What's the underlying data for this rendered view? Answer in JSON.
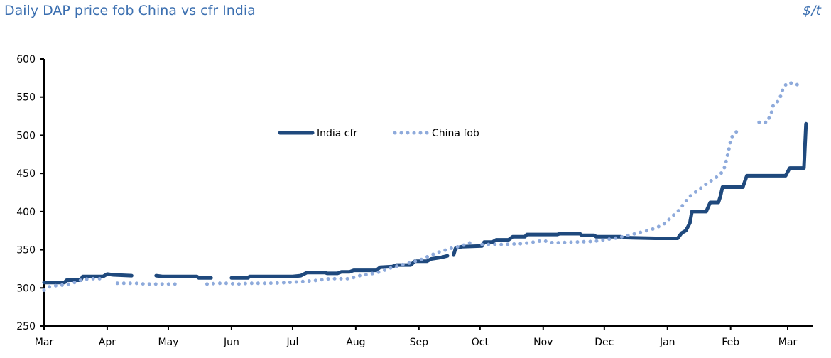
{
  "chart_data": {
    "type": "line",
    "title": "Daily DAP price fob China vs cfr India",
    "unit": "$/t",
    "xlabel": "",
    "ylabel": "$/t",
    "ylim": [
      250,
      600
    ],
    "yticks": [
      250,
      300,
      350,
      400,
      450,
      500,
      550,
      600
    ],
    "x_unit": "days since 1 March",
    "xlim": [
      0,
      375
    ],
    "xticks": [
      {
        "label": "Mar",
        "day": 0
      },
      {
        "label": "Apr",
        "day": 31
      },
      {
        "label": "May",
        "day": 61
      },
      {
        "label": "Jun",
        "day": 92
      },
      {
        "label": "Jul",
        "day": 122
      },
      {
        "label": "Aug",
        "day": 153
      },
      {
        "label": "Sep",
        "day": 184
      },
      {
        "label": "Oct",
        "day": 214
      },
      {
        "label": "Nov",
        "day": 245
      },
      {
        "label": "Dec",
        "day": 275
      },
      {
        "label": "Jan",
        "day": 306
      },
      {
        "label": "Feb",
        "day": 337
      },
      {
        "label": "Mar",
        "day": 365
      }
    ],
    "grid": false,
    "legend_position": "center",
    "series": [
      {
        "name": "India cfr",
        "style": "solid",
        "color": "#1f497d",
        "points": [
          [
            0,
            307
          ],
          [
            10,
            307
          ],
          [
            11,
            310
          ],
          [
            18,
            310
          ],
          [
            19,
            315
          ],
          [
            29,
            315
          ],
          [
            31,
            318
          ],
          [
            34,
            317
          ],
          [
            43,
            316
          ],
          null,
          [
            55,
            316
          ],
          [
            58,
            315
          ],
          [
            75,
            315
          ],
          [
            76,
            313
          ],
          [
            82,
            313
          ],
          null,
          [
            92,
            313
          ],
          [
            100,
            313
          ],
          [
            101,
            315
          ],
          [
            120,
            315
          ],
          [
            122,
            315
          ],
          [
            126,
            316
          ],
          [
            129,
            320
          ],
          [
            138,
            320
          ],
          [
            139,
            319
          ],
          [
            144,
            319
          ],
          [
            146,
            321
          ],
          [
            150,
            321
          ],
          [
            152,
            323
          ],
          [
            163,
            323
          ],
          [
            165,
            327
          ],
          [
            171,
            328
          ],
          [
            173,
            330
          ],
          [
            180,
            330
          ],
          [
            182,
            335
          ],
          [
            188,
            335
          ],
          [
            190,
            338
          ],
          [
            195,
            340
          ],
          [
            198,
            342
          ],
          null,
          [
            201,
            343
          ],
          [
            202,
            352
          ],
          [
            205,
            354
          ],
          [
            215,
            355
          ],
          [
            216,
            360
          ],
          [
            220,
            360
          ],
          [
            222,
            363
          ],
          [
            228,
            363
          ],
          [
            230,
            367
          ],
          [
            236,
            367
          ],
          [
            237,
            370
          ],
          [
            252,
            370
          ],
          [
            253,
            371
          ],
          [
            263,
            371
          ],
          [
            264,
            369
          ],
          [
            270,
            369
          ],
          [
            271,
            367
          ],
          [
            283,
            367
          ],
          [
            284,
            366
          ],
          [
            300,
            365
          ],
          [
            311,
            365
          ],
          [
            313,
            372
          ],
          [
            315,
            375
          ],
          [
            317,
            385
          ],
          [
            318,
            400
          ],
          [
            325,
            400
          ],
          [
            326,
            406
          ],
          [
            327,
            412
          ],
          [
            331,
            412
          ],
          [
            332,
            420
          ],
          [
            333,
            432
          ],
          [
            343,
            432
          ],
          [
            344,
            440
          ],
          [
            345,
            447
          ],
          [
            364,
            447
          ],
          [
            365,
            452
          ],
          [
            366,
            457
          ],
          [
            373,
            457
          ],
          [
            374,
            515
          ]
        ]
      },
      {
        "name": "China fob",
        "style": "dotted",
        "color": "#8eaadb",
        "points": [
          [
            0,
            297
          ],
          [
            3,
            302
          ],
          [
            6,
            303
          ],
          [
            10,
            304
          ],
          [
            14,
            306
          ],
          [
            18,
            310
          ],
          [
            22,
            312
          ],
          [
            26,
            312
          ],
          [
            30,
            312
          ],
          null,
          [
            36,
            306
          ],
          [
            40,
            306
          ],
          [
            45,
            306
          ],
          [
            50,
            305
          ],
          [
            55,
            305
          ],
          [
            60,
            305
          ],
          [
            65,
            305
          ],
          null,
          [
            80,
            305
          ],
          [
            85,
            306
          ],
          [
            90,
            306
          ],
          [
            95,
            305
          ],
          [
            100,
            306
          ],
          [
            110,
            306
          ],
          [
            120,
            307
          ],
          [
            125,
            308
          ],
          [
            130,
            309
          ],
          [
            135,
            310
          ],
          [
            140,
            312
          ],
          [
            150,
            312
          ],
          [
            155,
            316
          ],
          [
            160,
            318
          ],
          [
            165,
            321
          ],
          [
            170,
            326
          ],
          [
            175,
            330
          ],
          [
            180,
            333
          ],
          [
            185,
            337
          ],
          [
            190,
            343
          ],
          [
            195,
            348
          ],
          [
            200,
            352
          ],
          [
            205,
            355
          ],
          [
            210,
            360
          ],
          null,
          [
            215,
            357
          ],
          [
            225,
            357
          ],
          [
            235,
            358
          ],
          [
            245,
            362
          ],
          [
            250,
            359
          ],
          [
            260,
            360
          ],
          [
            270,
            361
          ],
          [
            280,
            365
          ],
          [
            287,
            369
          ],
          [
            293,
            373
          ],
          [
            300,
            378
          ],
          [
            305,
            385
          ],
          [
            308,
            393
          ],
          [
            311,
            400
          ],
          [
            314,
            410
          ],
          [
            317,
            420
          ],
          [
            320,
            426
          ],
          [
            323,
            432
          ],
          [
            326,
            438
          ],
          [
            329,
            443
          ],
          [
            331,
            447
          ],
          [
            333,
            452
          ],
          [
            334,
            458
          ],
          [
            335,
            468
          ],
          [
            336,
            480
          ],
          [
            337,
            493
          ],
          [
            338,
            500
          ],
          [
            340,
            505
          ],
          null,
          [
            351,
            517
          ],
          [
            355,
            517
          ],
          [
            357,
            530
          ],
          [
            358,
            540
          ],
          [
            361,
            546
          ],
          [
            362,
            556
          ],
          [
            363,
            563
          ],
          [
            365,
            569
          ],
          [
            368,
            568
          ],
          [
            371,
            565
          ]
        ]
      }
    ]
  }
}
